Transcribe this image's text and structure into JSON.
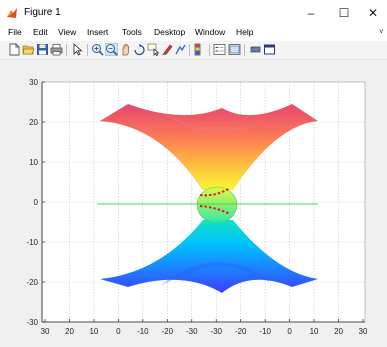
{
  "window": {
    "title": "Figure 1",
    "minimize_glyph": "–",
    "maximize_glyph": "☐",
    "close_glyph": "✕"
  },
  "menu": {
    "items": [
      "File",
      "Edit",
      "View",
      "Insert",
      "Tools",
      "Desktop",
      "Window",
      "Help"
    ],
    "overflow_glyph": "˅"
  },
  "toolbar": {
    "icons": [
      "new-figure-icon",
      "open-file-icon",
      "save-icon",
      "print-icon",
      "edit-plot-arrow-icon",
      "zoom-in-icon",
      "zoom-out-icon",
      "pan-icon",
      "rotate-3d-icon",
      "data-cursor-icon",
      "brush-icon",
      "link-plot-icon",
      "insert-colorbar-icon",
      "insert-legend-icon",
      "hide-plot-tools-icon",
      "show-plot-tools-icon"
    ]
  },
  "colors": {
    "window_bg": "#f0f0f0",
    "axes_bg": "#ffffff",
    "grid": "#c8c8c8",
    "axis_line": "#262626",
    "green_line": "#4cd44c",
    "red_dash": "#d62020"
  },
  "chart_data": {
    "type": "surface",
    "title": "",
    "xlabel": "",
    "ylabel": "",
    "grid": true,
    "xtick_labels": [
      "30",
      "20",
      "10",
      "0",
      "-10",
      "-20",
      "-30",
      "-30",
      "-20",
      "-10",
      "0",
      "10",
      "20",
      "30"
    ],
    "ytick_labels": [
      "30",
      "20",
      "10",
      "0",
      "-10",
      "-20",
      "-30"
    ],
    "ylim": [
      -30,
      30
    ],
    "upper_surface": {
      "apex_y": 0,
      "top_y": 23.5,
      "rim_left_y": 20,
      "rim_right_y": 20,
      "rim_inner_y": 16
    },
    "lower_surface": {
      "apex_y": 0,
      "bottom_y": -23,
      "rim_left_y": -19.5,
      "rim_right_y": -19.5,
      "rim_inner_y": -16
    },
    "colormap": [
      "#2050ff",
      "#00c8ff",
      "#00e8a0",
      "#a0f050",
      "#ffee30",
      "#ff9050",
      "#e84c6c"
    ]
  }
}
